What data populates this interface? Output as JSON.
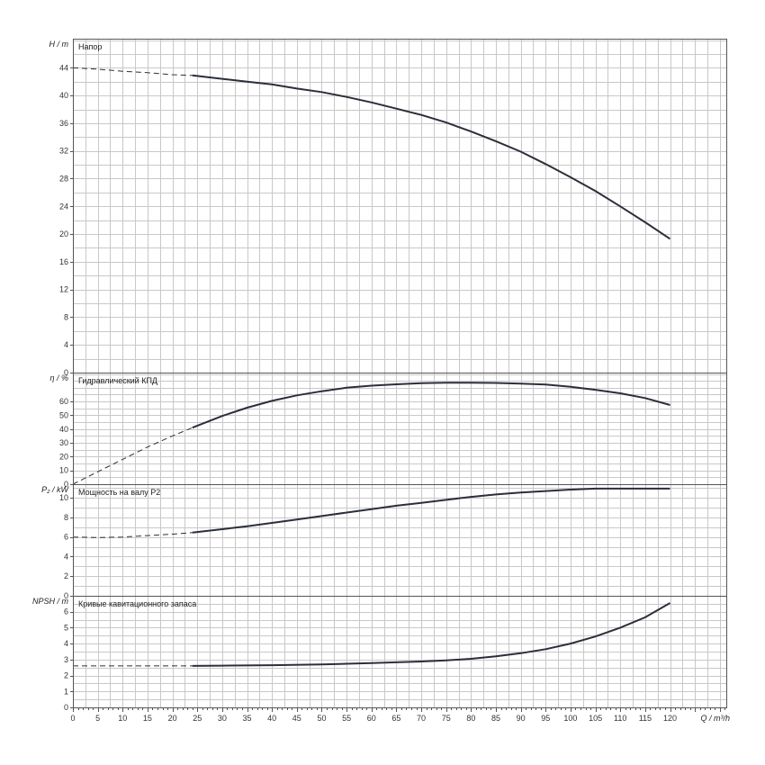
{
  "chart_data": {
    "type": "line",
    "x_axis": {
      "label": "Q / m³/h",
      "ticks": [
        "0",
        "5",
        "10",
        "15",
        "20",
        "25",
        "30",
        "35",
        "40",
        "45",
        "50",
        "55",
        "60",
        "65",
        "70",
        "75",
        "80",
        "85",
        "90",
        "95",
        "100",
        "105",
        "110",
        "115",
        "120"
      ],
      "range": [
        0,
        131.3
      ],
      "tick_step": 5
    },
    "grid": true,
    "panels": [
      {
        "id": "head",
        "title": "Напор",
        "ylabel": "H / m",
        "ylim": [
          0,
          48.2
        ],
        "y_ticks": [
          "0",
          "4",
          "8",
          "12",
          "16",
          "20",
          "24",
          "28",
          "32",
          "36",
          "40",
          "44"
        ],
        "y_tick_values": [
          0,
          4,
          8,
          12,
          16,
          20,
          24,
          28,
          32,
          36,
          40,
          44
        ],
        "dashed": {
          "x": [
            0,
            5,
            10,
            15,
            20,
            24
          ],
          "y": [
            44.0,
            43.8,
            43.5,
            43.3,
            43.0,
            42.9
          ]
        },
        "solid": {
          "x": [
            24,
            30,
            35,
            40,
            45,
            50,
            55,
            60,
            65,
            70,
            75,
            80,
            85,
            90,
            95,
            100,
            105,
            110,
            115,
            120
          ],
          "y": [
            42.9,
            42.4,
            42.0,
            41.6,
            41.0,
            40.5,
            39.8,
            39.0,
            38.1,
            37.2,
            36.1,
            34.8,
            33.4,
            31.9,
            30.1,
            28.2,
            26.2,
            24.0,
            21.7,
            19.3
          ]
        }
      },
      {
        "id": "efficiency",
        "title": "Гидравлический КПД",
        "ylabel": "η / %",
        "ylim": [
          0,
          81
        ],
        "y_ticks": [
          "0",
          "10",
          "20",
          "30",
          "40",
          "50",
          "60"
        ],
        "y_tick_values": [
          0,
          10,
          20,
          30,
          40,
          50,
          60
        ],
        "dashed": {
          "x": [
            0,
            5,
            10,
            15,
            20,
            24
          ],
          "y": [
            0,
            9,
            18,
            27,
            35,
            41
          ]
        },
        "solid": {
          "x": [
            24,
            30,
            35,
            40,
            45,
            50,
            55,
            60,
            65,
            70,
            75,
            80,
            85,
            90,
            95,
            100,
            105,
            110,
            115,
            120
          ],
          "y": [
            41,
            49.5,
            55.5,
            60.5,
            64.5,
            67.5,
            70.0,
            71.5,
            72.5,
            73.3,
            73.6,
            73.6,
            73.5,
            73.0,
            72.3,
            70.7,
            68.5,
            66.0,
            62.5,
            57.5
          ]
        }
      },
      {
        "id": "power",
        "title": "Мощность на валу P2",
        "ylabel": "P₂ / kW",
        "ylim": [
          0,
          11.4
        ],
        "y_ticks": [
          "0",
          "2",
          "4",
          "6",
          "8",
          "10"
        ],
        "y_tick_values": [
          0,
          2,
          4,
          6,
          8,
          10
        ],
        "dashed": {
          "x": [
            0,
            5,
            10,
            15,
            20,
            24
          ],
          "y": [
            6.0,
            5.95,
            6.0,
            6.15,
            6.3,
            6.45
          ]
        },
        "solid": {
          "x": [
            24,
            30,
            35,
            40,
            45,
            50,
            55,
            60,
            65,
            70,
            75,
            80,
            85,
            90,
            95,
            100,
            105,
            110,
            115,
            120
          ],
          "y": [
            6.45,
            6.8,
            7.1,
            7.45,
            7.8,
            8.15,
            8.5,
            8.85,
            9.2,
            9.5,
            9.8,
            10.1,
            10.35,
            10.55,
            10.7,
            10.85,
            10.95,
            10.95,
            10.95,
            10.95
          ]
        }
      },
      {
        "id": "npsh",
        "title": "Кривые кавитационного запаса",
        "ylabel": "NPSH / m",
        "ylim": [
          0,
          7.0
        ],
        "y_ticks": [
          "0",
          "1",
          "2",
          "3",
          "4",
          "5",
          "6"
        ],
        "y_tick_values": [
          0,
          1,
          2,
          3,
          4,
          5,
          6
        ],
        "dashed": {
          "x": [
            0,
            5,
            10,
            15,
            20,
            24
          ],
          "y": [
            2.6,
            2.6,
            2.6,
            2.6,
            2.6,
            2.6
          ]
        },
        "solid": {
          "x": [
            24,
            30,
            40,
            50,
            60,
            70,
            75,
            80,
            85,
            90,
            95,
            100,
            105,
            110,
            115,
            120
          ],
          "y": [
            2.6,
            2.62,
            2.65,
            2.7,
            2.78,
            2.88,
            2.95,
            3.05,
            3.2,
            3.4,
            3.65,
            4.0,
            4.45,
            5.0,
            5.65,
            6.55
          ]
        }
      }
    ]
  }
}
